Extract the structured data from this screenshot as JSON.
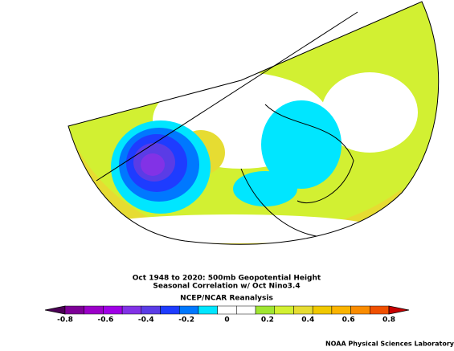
{
  "title": {
    "lines": [
      "Oct 1948 to 2020: 500mb Geopotential Height",
      "Seasonal Correlation w/ Oct Nino3.4"
    ]
  },
  "subtitle": "NCEP/NCAR Reanalysis",
  "colorbar": {
    "colors": [
      "#4b0055",
      "#7d0096",
      "#9b00c8",
      "#a000e6",
      "#8232e6",
      "#5a3ce6",
      "#1e3cff",
      "#0078ff",
      "#00e6ff",
      "#ffffff",
      "#ffffff",
      "#a0e632",
      "#d2f032",
      "#e6dc32",
      "#f0c800",
      "#fab400",
      "#fa8c00",
      "#f05000",
      "#c80000"
    ],
    "ticks": [
      "-0.8",
      "-0.6",
      "-0.4",
      "-0.2",
      "0",
      "0.2",
      "0.4",
      "0.6",
      "0.8"
    ]
  },
  "credit": "NOAA Physical Sciences Laboratory"
}
